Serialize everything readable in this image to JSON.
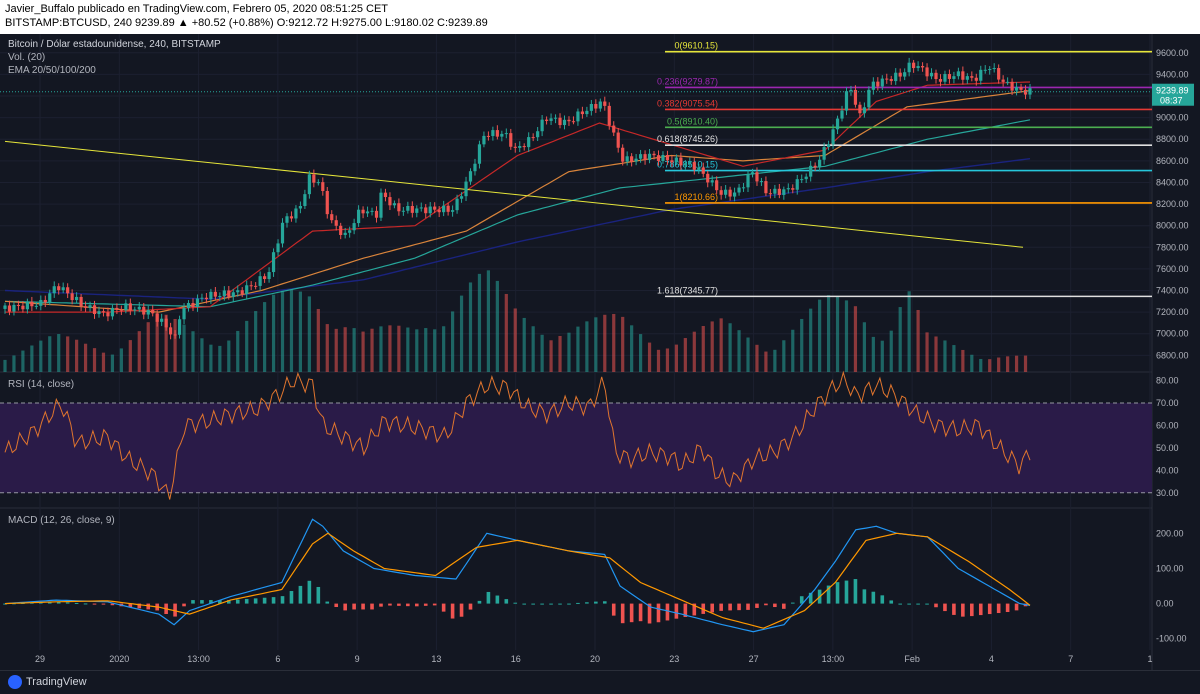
{
  "header": {
    "line1": "Javier_Buffalo publicado en TradingView.com, Febrero 05, 2020 08:51:25 CET",
    "line2": "BITSTAMP:BTCUSD, 240  9239.89  ▲ +80.52 (+0.88%)  O:9212.72  H:9275.00  L:9180.02  C:9239.89"
  },
  "legend": {
    "symbol": "Bitcoin / Dólar estadounidense, 240, BITSTAMP",
    "volume": "Vol. (20)",
    "ema": "EMA 20/50/100/200",
    "rsi": "RSI (14, close)",
    "macd": "MACD (12, 26, close, 9)"
  },
  "price_tag": {
    "value": "9239.89",
    "countdown": "08:37"
  },
  "footer": {
    "brand": "TradingView"
  },
  "colors": {
    "background": "#131722",
    "up": "#26a69a",
    "down": "#ef5350",
    "rsi": "#e0752e",
    "macd": "#2196f3",
    "signal": "#ff9800"
  },
  "chart_data": {
    "type": "candlestick",
    "symbol": "BTCUSD",
    "x_ticks": [
      "29",
      "2020",
      "13:00",
      "6",
      "9",
      "13",
      "16",
      "20",
      "23",
      "27",
      "13:00",
      "Feb",
      "4",
      "7",
      "1"
    ],
    "price_axis": [
      "9600.00",
      "9400.00",
      "9200.00",
      "9000.00",
      "8800.00",
      "8600.00",
      "8400.00",
      "8200.00",
      "8000.00",
      "7800.00",
      "7600.00",
      "7400.00",
      "7200.00",
      "7000.00",
      "6800.00"
    ],
    "ylim": [
      6720,
      9700
    ],
    "price_path": [
      [
        0,
        7230
      ],
      [
        0.04,
        7280
      ],
      [
        0.055,
        7450
      ],
      [
        0.08,
        7260
      ],
      [
        0.1,
        7180
      ],
      [
        0.12,
        7250
      ],
      [
        0.145,
        7200
      ],
      [
        0.16,
        7080
      ],
      [
        0.17,
        6950
      ],
      [
        0.175,
        7220
      ],
      [
        0.2,
        7350
      ],
      [
        0.23,
        7380
      ],
      [
        0.245,
        7450
      ],
      [
        0.26,
        7550
      ],
      [
        0.275,
        8050
      ],
      [
        0.29,
        8150
      ],
      [
        0.3,
        8440
      ],
      [
        0.31,
        8400
      ],
      [
        0.32,
        8050
      ],
      [
        0.335,
        7900
      ],
      [
        0.35,
        8150
      ],
      [
        0.365,
        8100
      ],
      [
        0.37,
        8300
      ],
      [
        0.385,
        8150
      ],
      [
        0.41,
        8150
      ],
      [
        0.44,
        8150
      ],
      [
        0.455,
        8450
      ],
      [
        0.47,
        8850
      ],
      [
        0.49,
        8850
      ],
      [
        0.5,
        8700
      ],
      [
        0.515,
        8800
      ],
      [
        0.53,
        9000
      ],
      [
        0.55,
        8950
      ],
      [
        0.565,
        9050
      ],
      [
        0.585,
        9150
      ],
      [
        0.595,
        8850
      ],
      [
        0.605,
        8600
      ],
      [
        0.63,
        8650
      ],
      [
        0.655,
        8600
      ],
      [
        0.675,
        8550
      ],
      [
        0.69,
        8400
      ],
      [
        0.7,
        8300
      ],
      [
        0.715,
        8300
      ],
      [
        0.73,
        8500
      ],
      [
        0.745,
        8300
      ],
      [
        0.765,
        8330
      ],
      [
        0.78,
        8450
      ],
      [
        0.795,
        8600
      ],
      [
        0.81,
        8900
      ],
      [
        0.825,
        9300
      ],
      [
        0.835,
        9000
      ],
      [
        0.845,
        9300
      ],
      [
        0.86,
        9350
      ],
      [
        0.875,
        9400
      ],
      [
        0.885,
        9500
      ],
      [
        0.895,
        9450
      ],
      [
        0.91,
        9350
      ],
      [
        0.93,
        9400
      ],
      [
        0.945,
        9350
      ],
      [
        0.96,
        9480
      ],
      [
        0.975,
        9320
      ],
      [
        0.99,
        9250
      ],
      [
        1.0,
        9239.89
      ]
    ],
    "ema20": [
      [
        0,
        7200
      ],
      [
        0.1,
        7200
      ],
      [
        0.2,
        7250
      ],
      [
        0.3,
        7950
      ],
      [
        0.4,
        8000
      ],
      [
        0.5,
        8650
      ],
      [
        0.58,
        8950
      ],
      [
        0.65,
        8750
      ],
      [
        0.72,
        8550
      ],
      [
        0.8,
        8700
      ],
      [
        0.85,
        9150
      ],
      [
        0.9,
        9300
      ],
      [
        1.0,
        9330
      ]
    ],
    "ema50": [
      [
        0,
        7300
      ],
      [
        0.15,
        7200
      ],
      [
        0.25,
        7400
      ],
      [
        0.35,
        7700
      ],
      [
        0.45,
        7950
      ],
      [
        0.55,
        8500
      ],
      [
        0.65,
        8650
      ],
      [
        0.72,
        8600
      ],
      [
        0.8,
        8650
      ],
      [
        0.88,
        9100
      ],
      [
        1.0,
        9250
      ]
    ],
    "ema100": [
      [
        0,
        7300
      ],
      [
        0.2,
        7250
      ],
      [
        0.3,
        7450
      ],
      [
        0.4,
        7700
      ],
      [
        0.5,
        8100
      ],
      [
        0.6,
        8350
      ],
      [
        0.7,
        8450
      ],
      [
        0.8,
        8550
      ],
      [
        0.9,
        8800
      ],
      [
        1.0,
        8980
      ]
    ],
    "ema200": [
      [
        0,
        7400
      ],
      [
        0.2,
        7320
      ],
      [
        0.35,
        7500
      ],
      [
        0.5,
        7850
      ],
      [
        0.65,
        8150
      ],
      [
        0.8,
        8350
      ],
      [
        0.9,
        8500
      ],
      [
        1.0,
        8620
      ]
    ],
    "trendline": [
      [
        0.0,
        8780
      ],
      [
        1.0,
        7800
      ]
    ],
    "fibonacci": [
      {
        "label": "0(9610.15)",
        "value": 9610.15,
        "color": "#e6e63a"
      },
      {
        "label": "0.236(9279.87)",
        "value": 9279.87,
        "color": "#9c27b0"
      },
      {
        "label": "0.382(9075.54)",
        "value": 9075.54,
        "color": "#e53935"
      },
      {
        "label": "0.5(8910.40)",
        "value": 8910.4,
        "color": "#4caf50"
      },
      {
        "label": "0.618(8745.26)",
        "value": 8745.26,
        "color": "#e0e0e0"
      },
      {
        "label": "0.786(8510.15)",
        "value": 8510.15,
        "color": "#26c6da"
      },
      {
        "label": "1(8210.66)",
        "value": 8210.66,
        "color": "#ff9800"
      },
      {
        "label": "1.618(7345.77)",
        "value": 7345.77,
        "color": "#e0e0e0"
      }
    ],
    "volume_path": [
      [
        0,
        0.2
      ],
      [
        0.05,
        0.35
      ],
      [
        0.1,
        0.25
      ],
      [
        0.15,
        0.55
      ],
      [
        0.2,
        0.35
      ],
      [
        0.27,
        0.75
      ],
      [
        0.3,
        0.85
      ],
      [
        0.35,
        0.4
      ],
      [
        0.4,
        0.45
      ],
      [
        0.45,
        0.9
      ],
      [
        0.47,
        0.95
      ],
      [
        0.5,
        0.6
      ],
      [
        0.55,
        0.45
      ],
      [
        0.6,
        0.55
      ],
      [
        0.65,
        0.3
      ],
      [
        0.7,
        0.5
      ],
      [
        0.75,
        0.3
      ],
      [
        0.8,
        0.7
      ],
      [
        0.83,
        0.75
      ],
      [
        0.86,
        0.4
      ],
      [
        0.88,
        0.85
      ],
      [
        0.9,
        0.35
      ],
      [
        0.95,
        0.2
      ],
      [
        1.0,
        0.15
      ]
    ],
    "rsi": {
      "axis": [
        "80.00",
        "70.00",
        "60.00",
        "50.00",
        "40.00",
        "30.00"
      ],
      "ylim": [
        25,
        82
      ],
      "overbought": 70,
      "oversold": 30,
      "values": [
        [
          0,
          48
        ],
        [
          0.03,
          58
        ],
        [
          0.055,
          70
        ],
        [
          0.07,
          52
        ],
        [
          0.1,
          55
        ],
        [
          0.12,
          45
        ],
        [
          0.145,
          38
        ],
        [
          0.16,
          28
        ],
        [
          0.175,
          60
        ],
        [
          0.2,
          62
        ],
        [
          0.22,
          65
        ],
        [
          0.245,
          67
        ],
        [
          0.27,
          75
        ],
        [
          0.28,
          80
        ],
        [
          0.3,
          78
        ],
        [
          0.31,
          60
        ],
        [
          0.33,
          55
        ],
        [
          0.35,
          50
        ],
        [
          0.37,
          62
        ],
        [
          0.39,
          60
        ],
        [
          0.41,
          58
        ],
        [
          0.43,
          55
        ],
        [
          0.45,
          70
        ],
        [
          0.47,
          78
        ],
        [
          0.49,
          77
        ],
        [
          0.51,
          68
        ],
        [
          0.53,
          65
        ],
        [
          0.55,
          70
        ],
        [
          0.57,
          68
        ],
        [
          0.585,
          80
        ],
        [
          0.595,
          48
        ],
        [
          0.61,
          45
        ],
        [
          0.63,
          48
        ],
        [
          0.65,
          46
        ],
        [
          0.66,
          42
        ],
        [
          0.68,
          50
        ],
        [
          0.695,
          38
        ],
        [
          0.71,
          35
        ],
        [
          0.73,
          45
        ],
        [
          0.75,
          48
        ],
        [
          0.77,
          55
        ],
        [
          0.79,
          68
        ],
        [
          0.81,
          78
        ],
        [
          0.82,
          80
        ],
        [
          0.83,
          73
        ],
        [
          0.85,
          78
        ],
        [
          0.87,
          73
        ],
        [
          0.89,
          65
        ],
        [
          0.91,
          60
        ],
        [
          0.93,
          58
        ],
        [
          0.95,
          60
        ],
        [
          0.97,
          50
        ],
        [
          0.99,
          42
        ],
        [
          1.0,
          48
        ]
      ]
    },
    "macd": {
      "axis": [
        "200.00",
        "100.00",
        "0.00",
        "-100.00"
      ],
      "ylim": [
        -115,
        255
      ],
      "macd_line": [
        [
          0,
          0
        ],
        [
          0.05,
          10
        ],
        [
          0.1,
          5
        ],
        [
          0.15,
          -30
        ],
        [
          0.165,
          -60
        ],
        [
          0.18,
          -20
        ],
        [
          0.22,
          20
        ],
        [
          0.27,
          60
        ],
        [
          0.3,
          240
        ],
        [
          0.31,
          220
        ],
        [
          0.33,
          150
        ],
        [
          0.36,
          100
        ],
        [
          0.4,
          80
        ],
        [
          0.44,
          70
        ],
        [
          0.47,
          200
        ],
        [
          0.5,
          180
        ],
        [
          0.55,
          150
        ],
        [
          0.585,
          140
        ],
        [
          0.6,
          50
        ],
        [
          0.63,
          -10
        ],
        [
          0.66,
          -30
        ],
        [
          0.7,
          -60
        ],
        [
          0.73,
          -80
        ],
        [
          0.76,
          -60
        ],
        [
          0.79,
          40
        ],
        [
          0.81,
          120
        ],
        [
          0.83,
          210
        ],
        [
          0.85,
          220
        ],
        [
          0.87,
          200
        ],
        [
          0.9,
          190
        ],
        [
          0.93,
          100
        ],
        [
          0.96,
          50
        ],
        [
          0.99,
          0
        ],
        [
          1.0,
          -5
        ]
      ],
      "signal_line": [
        [
          0,
          0
        ],
        [
          0.05,
          5
        ],
        [
          0.1,
          8
        ],
        [
          0.15,
          -10
        ],
        [
          0.18,
          -30
        ],
        [
          0.22,
          10
        ],
        [
          0.27,
          40
        ],
        [
          0.3,
          170
        ],
        [
          0.315,
          200
        ],
        [
          0.34,
          150
        ],
        [
          0.37,
          100
        ],
        [
          0.42,
          80
        ],
        [
          0.46,
          160
        ],
        [
          0.5,
          180
        ],
        [
          0.55,
          150
        ],
        [
          0.59,
          130
        ],
        [
          0.62,
          60
        ],
        [
          0.66,
          10
        ],
        [
          0.7,
          -40
        ],
        [
          0.74,
          -70
        ],
        [
          0.78,
          -20
        ],
        [
          0.81,
          60
        ],
        [
          0.84,
          180
        ],
        [
          0.87,
          200
        ],
        [
          0.9,
          190
        ],
        [
          0.94,
          120
        ],
        [
          0.98,
          40
        ],
        [
          1.0,
          -5
        ]
      ]
    }
  }
}
